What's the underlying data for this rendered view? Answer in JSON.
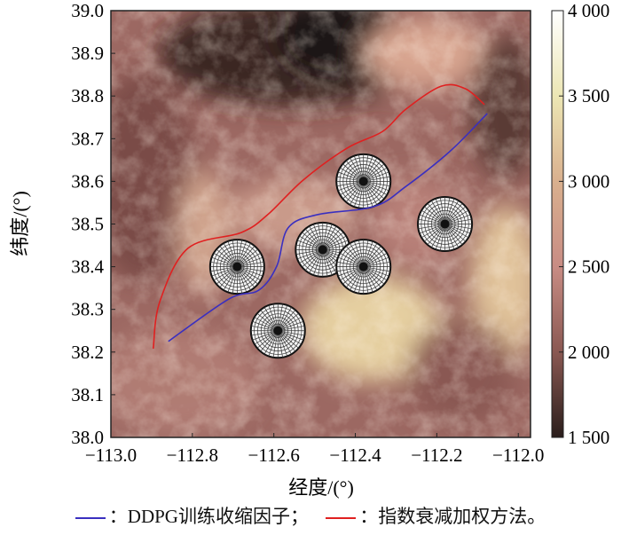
{
  "chart_data": {
    "type": "line",
    "xlabel": "经度/(°)",
    "ylabel": "纬度/(°)",
    "xlim": [
      -113.0,
      -111.97
    ],
    "ylim": [
      38.0,
      39.0
    ],
    "xticks": [
      "-113.0",
      "-112.8",
      "-112.6",
      "-112.4",
      "-112.2",
      "-112.0"
    ],
    "xtick_values": [
      -113.0,
      -112.8,
      -112.6,
      -112.4,
      -112.2,
      -112.0
    ],
    "yticks": [
      "38.0",
      "38.1",
      "38.2",
      "38.3",
      "38.4",
      "38.5",
      "38.6",
      "38.7",
      "38.8",
      "38.9",
      "39.0"
    ],
    "ytick_values": [
      38.0,
      38.1,
      38.2,
      38.3,
      38.4,
      38.5,
      38.6,
      38.7,
      38.8,
      38.9,
      39.0
    ],
    "background": "elevation raster (terrain map)",
    "colorbar": {
      "range": [
        1500,
        4000
      ],
      "ticks": [
        "1 500",
        "2 000",
        "2 500",
        "3 000",
        "3 500",
        "4 000"
      ],
      "tick_values": [
        1500,
        2000,
        2500,
        3000,
        3500,
        4000
      ],
      "colors": [
        "#2a1d1b",
        "#8a5852",
        "#c88c84",
        "#d9b08e",
        "#ece6b4",
        "#ffffff"
      ]
    },
    "series": [
      {
        "name": "DDPG训练收缩因子",
        "color": "#3a2fc0",
        "points": [
          [
            -112.859,
            38.225
          ],
          [
            -112.711,
            38.324
          ],
          [
            -112.637,
            38.345
          ],
          [
            -112.593,
            38.401
          ],
          [
            -112.565,
            38.491
          ],
          [
            -112.493,
            38.522
          ],
          [
            -112.354,
            38.541
          ],
          [
            -112.276,
            38.588
          ],
          [
            -112.167,
            38.671
          ],
          [
            -112.076,
            38.759
          ]
        ]
      },
      {
        "name": "指数衰减加权方法",
        "color": "#e02020",
        "points": [
          [
            -112.896,
            38.208
          ],
          [
            -112.88,
            38.318
          ],
          [
            -112.811,
            38.443
          ],
          [
            -112.68,
            38.48
          ],
          [
            -112.615,
            38.522
          ],
          [
            -112.528,
            38.603
          ],
          [
            -112.42,
            38.678
          ],
          [
            -112.333,
            38.717
          ],
          [
            -112.276,
            38.769
          ],
          [
            -112.189,
            38.823
          ],
          [
            -112.13,
            38.817
          ],
          [
            -112.083,
            38.78
          ]
        ]
      }
    ],
    "obstacles": [
      [
        -112.38,
        38.6
      ],
      [
        -112.18,
        38.5
      ],
      [
        -112.48,
        38.44
      ],
      [
        -112.38,
        38.4
      ],
      [
        -112.69,
        38.4
      ],
      [
        -112.59,
        38.25
      ]
    ]
  },
  "legend": {
    "item1": "：DDPG训练收缩因子；",
    "item2": "：指数衰减加权方法。"
  }
}
